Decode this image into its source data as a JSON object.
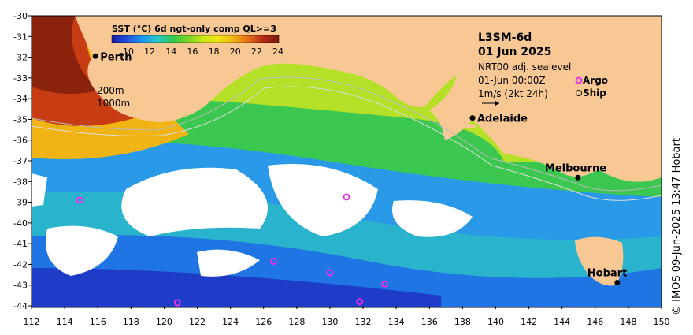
{
  "colorbar": {
    "title": "SST (°C) 6d ngt-only comp QL>=3",
    "ticks": [
      "10",
      "12",
      "14",
      "16",
      "18",
      "20",
      "22",
      "24"
    ],
    "stops": [
      "#1a1aa0",
      "#1e50dc",
      "#1e96f0",
      "#28c8c8",
      "#32c850",
      "#78d228",
      "#c8e614",
      "#f0e614",
      "#f0b414",
      "#e66e14",
      "#b42814",
      "#7a1a0a"
    ]
  },
  "title": {
    "product": "L3SM-6d",
    "date": "01 Jun 2025",
    "sealevel": "NRT00 adj. sealevel",
    "time": "01-Jun 00:00Z",
    "argo_label": "Argo",
    "ship_label": "Ship",
    "vector_scale": "1m/s (2kt 24h)"
  },
  "depth_labels": [
    "200m",
    "1000m"
  ],
  "cities": [
    {
      "name": "Perth",
      "lon": 115.86,
      "lat": -31.95
    },
    {
      "name": "Adelaide",
      "lon": 138.6,
      "lat": -34.93
    },
    {
      "name": "Melbourne",
      "lon": 144.96,
      "lat": -37.81
    },
    {
      "name": "Hobart",
      "lon": 147.33,
      "lat": -42.88
    }
  ],
  "axes": {
    "x_ticks": [
      "112",
      "114",
      "116",
      "118",
      "120",
      "122",
      "124",
      "126",
      "128",
      "130",
      "132",
      "134",
      "136",
      "138",
      "140",
      "142",
      "144",
      "146",
      "148",
      "150"
    ],
    "y_ticks": [
      "-30",
      "-31",
      "-32",
      "-33",
      "-34",
      "-35",
      "-36",
      "-37",
      "-38",
      "-39",
      "-40",
      "-41",
      "-42",
      "-43",
      "-44"
    ]
  },
  "argo_floats": [
    {
      "lon": 114.9,
      "lat": -38.9
    },
    {
      "lon": 131.0,
      "lat": -38.75
    },
    {
      "lon": 126.6,
      "lat": -41.85
    },
    {
      "lon": 130.0,
      "lat": -42.4
    },
    {
      "lon": 133.3,
      "lat": -42.95
    },
    {
      "lon": 120.8,
      "lat": -43.85
    },
    {
      "lon": 131.8,
      "lat": -43.8
    }
  ],
  "credit": "© IMOS 09-Jun-2025 13:47 Hobart",
  "colors": {
    "land": "#f8c894",
    "argo": "#e830e8",
    "city": "#000000"
  }
}
